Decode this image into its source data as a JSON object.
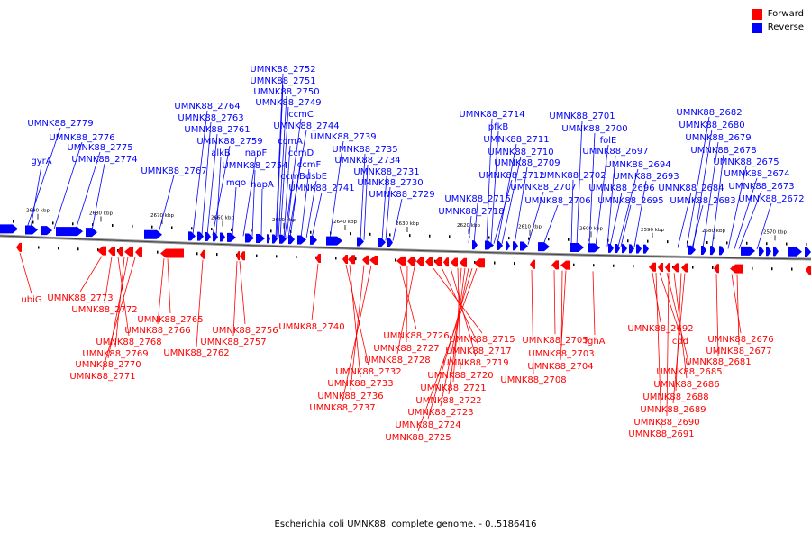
{
  "legend": {
    "forward": {
      "label": "Forward",
      "color": "#ff0000"
    },
    "reverse": {
      "label": "Reverse",
      "color": "#0000ff"
    }
  },
  "caption": "Escherichia coli UMNK88, complete genome. - 0..5186416",
  "scale_labels": [
    "2690 kbp",
    "2680 kbp",
    "2670 kbp",
    "2660 kbp",
    "2650 kbp",
    "2640 kbp",
    "2630 kbp",
    "2620 kbp",
    "2610 kbp",
    "2600 kbp",
    "2590 kbp",
    "2580 kbp",
    "2570 kbp"
  ],
  "reverse_genes": [
    "UMNK88_2752",
    "UMNK88_2751",
    "UMNK88_2750",
    "UMNK88_2749",
    "ccmC",
    "UMNK88_2764",
    "UMNK88_2763",
    "UMNK88_2744",
    "UMNK88_2761",
    "ccmA",
    "UMNK88_2759",
    "ccmD",
    "UMNK88_2739",
    "UMNK88_2779",
    "UMNK88_2776",
    "UMNK88_2775",
    "UMNK88_2774",
    "gyrA",
    "alkB",
    "napF",
    "UMNK88_2754",
    "ccmF",
    "UMNK88_2767",
    "UMNK88_2735",
    "UMNK88_2734",
    "ccmB",
    "dsbE",
    "UMNK88_2731",
    "mqo",
    "napA",
    "UMNK88_2741",
    "UMNK88_2730",
    "UMNK88_2729",
    "UMNK88_2714",
    "pfkB",
    "UMNK88_2711",
    "UMNK88_2710",
    "UMNK88_2709",
    "UMNK88_2712",
    "UMNK88_2707",
    "UMNK88_2716",
    "UMNK88_2706",
    "UMNK88_2718",
    "UMNK88_2701",
    "UMNK88_2700",
    "folE",
    "UMNK88_2697",
    "UMNK88_2694",
    "UMNK88_2702",
    "UMNK88_2693",
    "UMNK88_2696",
    "UMNK88_2695",
    "UMNK88_2682",
    "UMNK88_2680",
    "UMNK88_2679",
    "UMNK88_2678",
    "UMNK88_2675",
    "UMNK88_2674",
    "UMNK88_2673",
    "UMNK88_2684",
    "UMNK88_2683",
    "UMNK88_2672"
  ],
  "forward_genes": [
    "ubiG",
    "UMNK88_2773",
    "UMNK88_2772",
    "UMNK88_2765",
    "UMNK88_2766",
    "UMNK88_2768",
    "UMNK88_2769",
    "UMNK88_2770",
    "UMNK88_2771",
    "UMNK88_2756",
    "UMNK88_2757",
    "UMNK88_2762",
    "UMNK88_2740",
    "UMNK88_2726",
    "UMNK88_2727",
    "UMNK88_2728",
    "UMNK88_2732",
    "UMNK88_2733",
    "UMNK88_2736",
    "UMNK88_2737",
    "UMNK88_2715",
    "UMNK88_2717",
    "UMNK88_2719",
    "UMNK88_2720",
    "UMNK88_2721",
    "UMNK88_2722",
    "UMNK88_2723",
    "UMNK88_2724",
    "UMNK88_2725",
    "UMNK88_2705",
    "UMNK88_2703",
    "UMNK88_2704",
    "UMNK88_2708",
    "fghA",
    "UMNK88_2692",
    "cdd",
    "UMNK88_2685",
    "UMNK88_2686",
    "UMNK88_2688",
    "UMNK88_2689",
    "UMNK88_2690",
    "UMNK88_2691",
    "UMNK88_2676",
    "UMNK88_2677",
    "UMNK88_2681"
  ]
}
